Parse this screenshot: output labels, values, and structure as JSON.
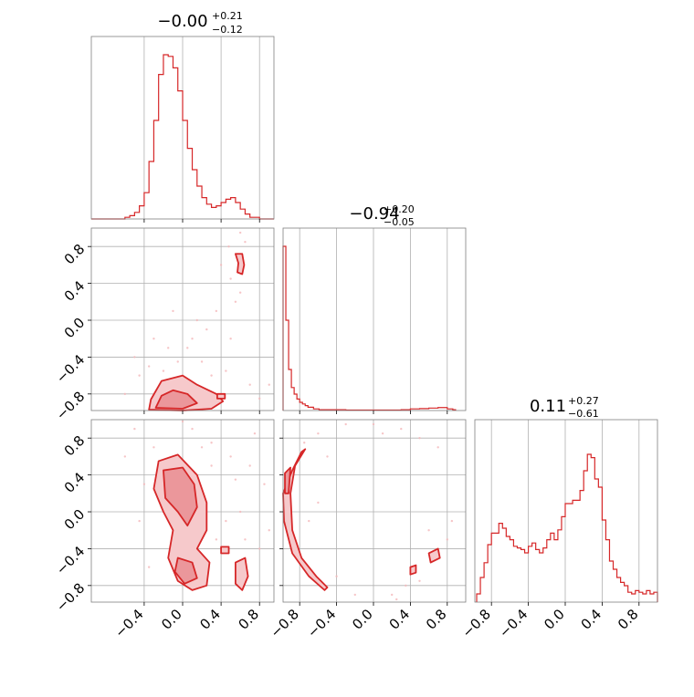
{
  "colors": {
    "accent": "#d62728",
    "fill_light": "#f6c9cb",
    "fill_mid": "#eb979b",
    "scatter": "#f4b6b9",
    "grid": "#b0b0b0",
    "frame": "#7f7f7f"
  },
  "chart_data": [
    {
      "type": "histogram",
      "panel": "param-1-marginal",
      "title_main": "−0.00",
      "title_sup": "+0.21",
      "title_sub": "−0.12",
      "xlim": [
        -0.95,
        0.95
      ],
      "x": [
        -0.95,
        -0.9,
        -0.85,
        -0.8,
        -0.75,
        -0.7,
        -0.65,
        -0.6,
        -0.55,
        -0.5,
        -0.45,
        -0.4,
        -0.35,
        -0.3,
        -0.25,
        -0.2,
        -0.15,
        -0.1,
        -0.05,
        0.0,
        0.05,
        0.1,
        0.15,
        0.2,
        0.25,
        0.3,
        0.35,
        0.4,
        0.45,
        0.5,
        0.55,
        0.6,
        0.65,
        0.7,
        0.75,
        0.8,
        0.85,
        0.9
      ],
      "values": [
        0,
        0,
        0,
        0,
        0,
        0,
        0,
        0.01,
        0.02,
        0.04,
        0.08,
        0.16,
        0.35,
        0.6,
        0.88,
        1.0,
        0.99,
        0.92,
        0.78,
        0.6,
        0.43,
        0.3,
        0.2,
        0.13,
        0.09,
        0.07,
        0.08,
        0.1,
        0.12,
        0.13,
        0.1,
        0.06,
        0.03,
        0.01,
        0.01,
        0,
        0,
        0
      ],
      "xticks": [
        "−0.4",
        "0.0",
        "0.4",
        "0.8"
      ],
      "xtick_values": [
        -0.4,
        0.0,
        0.4,
        0.8
      ]
    },
    {
      "type": "histogram",
      "panel": "param-2-marginal",
      "title_main": "−0.94",
      "title_sup": "+0.20",
      "title_sub": "−0.05",
      "xlim": [
        -0.98,
        1.0
      ],
      "x": [
        -0.98,
        -0.95,
        -0.92,
        -0.89,
        -0.86,
        -0.83,
        -0.8,
        -0.77,
        -0.74,
        -0.71,
        -0.68,
        -0.65,
        -0.62,
        -0.59,
        -0.56,
        -0.5,
        -0.3,
        0.0,
        0.3,
        0.4,
        0.5,
        0.6,
        0.7,
        0.8,
        0.86
      ],
      "values": [
        1.0,
        0.55,
        0.25,
        0.14,
        0.1,
        0.07,
        0.05,
        0.04,
        0.03,
        0.02,
        0.02,
        0.01,
        0.01,
        0.005,
        0.005,
        0.005,
        0.003,
        0.003,
        0.005,
        0.01,
        0.012,
        0.015,
        0.018,
        0.01,
        0.005
      ],
      "xticks": [
        "−0.8",
        "−0.4",
        "0.0",
        "0.4",
        "0.8"
      ],
      "xtick_values": [
        -0.8,
        -0.4,
        0.0,
        0.4,
        0.8
      ]
    },
    {
      "type": "histogram",
      "panel": "param-3-marginal",
      "title_main": "0.11",
      "title_sup": "+0.27",
      "title_sub": "−0.61",
      "xlim": [
        -0.98,
        1.0
      ],
      "x": [
        -0.96,
        -0.92,
        -0.88,
        -0.84,
        -0.8,
        -0.76,
        -0.72,
        -0.68,
        -0.64,
        -0.6,
        -0.56,
        -0.52,
        -0.48,
        -0.44,
        -0.4,
        -0.36,
        -0.32,
        -0.28,
        -0.24,
        -0.2,
        -0.16,
        -0.12,
        -0.08,
        -0.04,
        0.0,
        0.04,
        0.08,
        0.12,
        0.16,
        0.2,
        0.24,
        0.28,
        0.32,
        0.36,
        0.4,
        0.44,
        0.48,
        0.52,
        0.56,
        0.6,
        0.64,
        0.68,
        0.72,
        0.76,
        0.8,
        0.84,
        0.88,
        0.92,
        0.96
      ],
      "values": [
        0.05,
        0.15,
        0.24,
        0.35,
        0.42,
        0.42,
        0.48,
        0.45,
        0.4,
        0.38,
        0.34,
        0.33,
        0.32,
        0.3,
        0.34,
        0.36,
        0.32,
        0.3,
        0.33,
        0.38,
        0.42,
        0.38,
        0.44,
        0.52,
        0.6,
        0.6,
        0.62,
        0.62,
        0.68,
        0.8,
        0.9,
        0.88,
        0.75,
        0.7,
        0.5,
        0.38,
        0.25,
        0.2,
        0.15,
        0.12,
        0.1,
        0.06,
        0.05,
        0.07,
        0.06,
        0.05,
        0.07,
        0.05,
        0.06
      ],
      "xticks": [
        "−0.8",
        "−0.4",
        "0.0",
        "0.4",
        "0.8"
      ],
      "xtick_values": [
        -0.8,
        -0.4,
        0.0,
        0.4,
        0.8
      ]
    },
    {
      "type": "contour",
      "panel": "param-1-vs-param-2",
      "xlim": [
        -0.95,
        0.95
      ],
      "ylim": [
        -0.98,
        1.0
      ],
      "yticks": [
        "−0.8",
        "−0.4",
        "0.0",
        "0.4",
        "0.8"
      ],
      "ytick_values": [
        -0.8,
        -0.4,
        0.0,
        0.4,
        0.8
      ],
      "regions": [
        {
          "level": "outer",
          "points": [
            [
              -0.35,
              -0.97
            ],
            [
              -0.33,
              -0.86
            ],
            [
              -0.22,
              -0.66
            ],
            [
              0.0,
              -0.6
            ],
            [
              0.15,
              -0.7
            ],
            [
              0.35,
              -0.8
            ],
            [
              0.42,
              -0.88
            ],
            [
              0.3,
              -0.96
            ],
            [
              0.0,
              -0.98
            ]
          ]
        },
        {
          "level": "inner",
          "points": [
            [
              -0.28,
              -0.95
            ],
            [
              -0.22,
              -0.82
            ],
            [
              -0.1,
              -0.76
            ],
            [
              0.05,
              -0.8
            ],
            [
              0.15,
              -0.9
            ],
            [
              0.0,
              -0.96
            ]
          ]
        },
        {
          "level": "outer",
          "points": [
            [
              0.55,
              0.72
            ],
            [
              0.62,
              0.72
            ],
            [
              0.64,
              0.6
            ],
            [
              0.62,
              0.5
            ],
            [
              0.57,
              0.52
            ],
            [
              0.58,
              0.62
            ]
          ]
        },
        {
          "level": "outer",
          "points": [
            [
              0.36,
              -0.8
            ],
            [
              0.44,
              -0.8
            ],
            [
              0.44,
              -0.85
            ],
            [
              0.36,
              -0.85
            ]
          ]
        }
      ],
      "points": [
        [
          -0.5,
          -0.4
        ],
        [
          -0.45,
          -0.6
        ],
        [
          -0.6,
          -0.8
        ],
        [
          -0.3,
          -0.2
        ],
        [
          -0.1,
          0.1
        ],
        [
          0.05,
          -0.3
        ],
        [
          0.2,
          -0.45
        ],
        [
          0.3,
          -0.6
        ],
        [
          0.45,
          -0.55
        ],
        [
          0.5,
          -0.2
        ],
        [
          0.55,
          0.2
        ],
        [
          0.5,
          0.45
        ],
        [
          0.48,
          0.8
        ],
        [
          0.65,
          0.85
        ],
        [
          0.6,
          0.3
        ],
        [
          0.4,
          0.6
        ],
        [
          -0.2,
          -0.55
        ],
        [
          -0.05,
          -0.45
        ],
        [
          0.1,
          -0.2
        ],
        [
          0.25,
          -0.1
        ],
        [
          0.35,
          0.1
        ],
        [
          -0.35,
          -0.5
        ],
        [
          0.7,
          -0.7
        ],
        [
          0.8,
          -0.85
        ],
        [
          0.9,
          -0.7
        ],
        [
          -0.15,
          -0.3
        ],
        [
          0.15,
          0.0
        ],
        [
          0.6,
          0.95
        ]
      ]
    },
    {
      "type": "contour",
      "panel": "param-1-vs-param-3",
      "xlim": [
        -0.95,
        0.95
      ],
      "ylim": [
        -0.98,
        1.0
      ],
      "xticks": [
        "−0.4",
        "0.0",
        "0.4",
        "0.8"
      ],
      "xtick_values": [
        -0.4,
        0.0,
        0.4,
        0.8
      ],
      "yticks": [
        "−0.8",
        "−0.4",
        "0.0",
        "0.4",
        "0.8"
      ],
      "ytick_values": [
        -0.8,
        -0.4,
        0.0,
        0.4,
        0.8
      ],
      "regions": [
        {
          "level": "outer",
          "points": [
            [
              -0.25,
              0.55
            ],
            [
              -0.05,
              0.62
            ],
            [
              0.15,
              0.4
            ],
            [
              0.25,
              0.1
            ],
            [
              0.25,
              -0.2
            ],
            [
              0.15,
              -0.4
            ],
            [
              0.28,
              -0.55
            ],
            [
              0.25,
              -0.8
            ],
            [
              0.1,
              -0.85
            ],
            [
              -0.05,
              -0.75
            ],
            [
              -0.15,
              -0.5
            ],
            [
              -0.1,
              -0.2
            ],
            [
              -0.2,
              0.0
            ],
            [
              -0.3,
              0.25
            ]
          ]
        },
        {
          "level": "inner",
          "points": [
            [
              -0.2,
              0.45
            ],
            [
              0.0,
              0.48
            ],
            [
              0.12,
              0.3
            ],
            [
              0.15,
              0.05
            ],
            [
              0.05,
              -0.15
            ],
            [
              -0.05,
              0.0
            ],
            [
              -0.18,
              0.15
            ]
          ]
        },
        {
          "level": "inner",
          "points": [
            [
              -0.05,
              -0.5
            ],
            [
              0.1,
              -0.55
            ],
            [
              0.15,
              -0.72
            ],
            [
              0.02,
              -0.78
            ],
            [
              -0.08,
              -0.65
            ]
          ]
        },
        {
          "level": "outer",
          "points": [
            [
              0.55,
              -0.55
            ],
            [
              0.65,
              -0.5
            ],
            [
              0.68,
              -0.7
            ],
            [
              0.62,
              -0.85
            ],
            [
              0.55,
              -0.78
            ]
          ]
        },
        {
          "level": "outer",
          "points": [
            [
              0.4,
              -0.38
            ],
            [
              0.48,
              -0.38
            ],
            [
              0.48,
              -0.45
            ],
            [
              0.4,
              -0.45
            ]
          ]
        }
      ],
      "points": [
        [
          -0.5,
          0.9
        ],
        [
          -0.3,
          0.7
        ],
        [
          0.1,
          0.9
        ],
        [
          0.3,
          0.75
        ],
        [
          0.5,
          0.6
        ],
        [
          0.7,
          0.5
        ],
        [
          0.85,
          0.3
        ],
        [
          0.6,
          0.0
        ],
        [
          0.45,
          -0.1
        ],
        [
          0.35,
          -0.3
        ],
        [
          0.8,
          -0.4
        ],
        [
          0.9,
          -0.2
        ],
        [
          -0.4,
          0.3
        ],
        [
          -0.45,
          -0.1
        ],
        [
          -0.35,
          -0.6
        ],
        [
          0.2,
          0.7
        ],
        [
          0.75,
          0.85
        ],
        [
          0.0,
          0.98
        ],
        [
          0.55,
          0.35
        ],
        [
          -0.6,
          0.6
        ],
        [
          0.3,
          0.5
        ],
        [
          0.65,
          -0.3
        ]
      ]
    },
    {
      "type": "contour",
      "panel": "param-2-vs-param-3",
      "xlim": [
        -0.98,
        1.0
      ],
      "ylim": [
        -0.98,
        1.0
      ],
      "xticks": [
        "−0.8",
        "−0.4",
        "0.0",
        "0.4",
        "0.8"
      ],
      "xtick_values": [
        -0.8,
        -0.4,
        0.0,
        0.4,
        0.8
      ],
      "regions": [
        {
          "level": "outer",
          "points": [
            [
              -0.88,
              0.45
            ],
            [
              -0.78,
              0.65
            ],
            [
              -0.74,
              0.68
            ],
            [
              -0.85,
              0.5
            ],
            [
              -0.9,
              0.2
            ],
            [
              -0.88,
              -0.2
            ],
            [
              -0.78,
              -0.5
            ],
            [
              -0.62,
              -0.7
            ],
            [
              -0.5,
              -0.82
            ],
            [
              -0.53,
              -0.85
            ],
            [
              -0.7,
              -0.7
            ],
            [
              -0.88,
              -0.45
            ],
            [
              -0.97,
              -0.1
            ],
            [
              -0.98,
              0.2
            ]
          ]
        },
        {
          "level": "inner",
          "points": [
            [
              -0.96,
              0.42
            ],
            [
              -0.9,
              0.48
            ],
            [
              -0.92,
              0.2
            ],
            [
              -0.96,
              0.2
            ]
          ]
        },
        {
          "level": "outer",
          "points": [
            [
              0.6,
              -0.45
            ],
            [
              0.7,
              -0.4
            ],
            [
              0.72,
              -0.5
            ],
            [
              0.62,
              -0.55
            ]
          ]
        },
        {
          "level": "outer",
          "points": [
            [
              0.4,
              -0.6
            ],
            [
              0.46,
              -0.58
            ],
            [
              0.46,
              -0.66
            ],
            [
              0.4,
              -0.68
            ]
          ]
        }
      ],
      "points": [
        [
          -0.6,
          0.85
        ],
        [
          -0.3,
          0.95
        ],
        [
          0.0,
          0.95
        ],
        [
          0.3,
          0.9
        ],
        [
          0.5,
          0.8
        ],
        [
          0.7,
          0.7
        ],
        [
          -0.7,
          -0.1
        ],
        [
          -0.6,
          0.1
        ],
        [
          -0.4,
          -0.7
        ],
        [
          -0.2,
          -0.9
        ],
        [
          0.2,
          -0.9
        ],
        [
          0.35,
          -0.8
        ],
        [
          0.5,
          -0.75
        ],
        [
          0.8,
          -0.3
        ],
        [
          0.85,
          -0.1
        ],
        [
          -0.5,
          0.6
        ],
        [
          0.1,
          0.85
        ],
        [
          -0.75,
          0.75
        ],
        [
          0.25,
          -0.95
        ],
        [
          0.6,
          -0.2
        ]
      ]
    }
  ]
}
